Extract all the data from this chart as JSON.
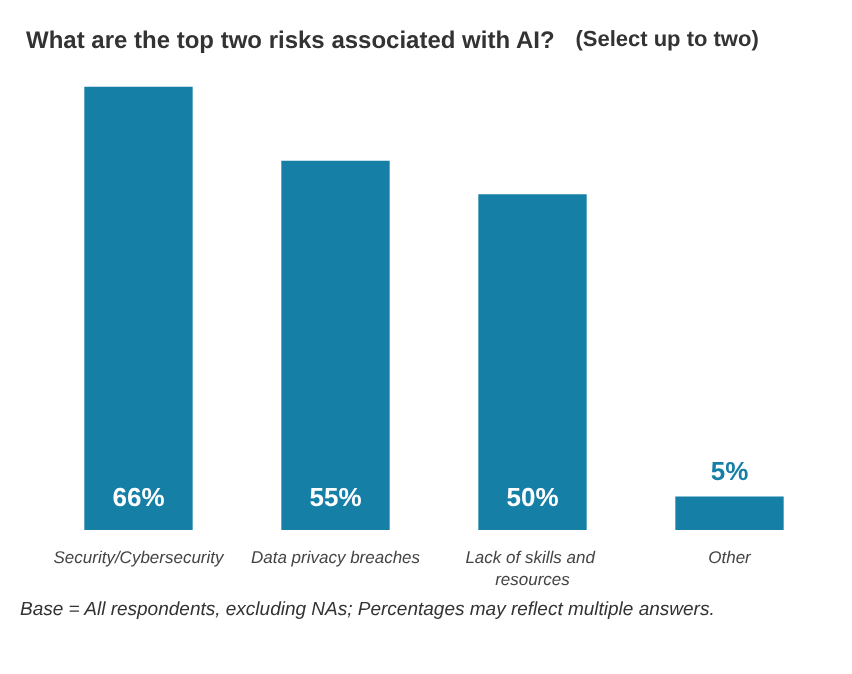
{
  "chart_data": {
    "type": "bar",
    "title": "What are the top two risks associated with AI?",
    "subtitle": "(Select up to two)",
    "categories": [
      "Security/Cybersecurity",
      "Data privacy breaches",
      "Lack of skills and resources",
      "Other"
    ],
    "values": [
      66,
      55,
      50,
      5
    ],
    "value_labels": [
      "66%",
      "55%",
      "50%",
      "5%"
    ],
    "color": "#167fa6",
    "annotations": [
      "Base = All respondents, excluding NAs; Percentages may reflect multiple answers."
    ]
  }
}
